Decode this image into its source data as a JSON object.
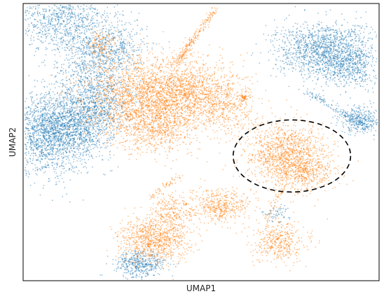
{
  "chart_data": {
    "type": "scatter",
    "title": "",
    "xlabel": "UMAP1",
    "ylabel": "UMAP2",
    "ticks": "none",
    "grid": false,
    "legend": "none",
    "series": [
      {
        "color": "#1f77b4",
        "clusters": [
          {
            "cx": 0.11,
            "cy": 0.95,
            "sx": 0.07,
            "sy": 0.07,
            "n": 1100
          },
          {
            "cx": 0.25,
            "cy": 0.84,
            "sx": 0.05,
            "sy": 0.05,
            "n": 500
          },
          {
            "cx": 0.19,
            "cy": 0.74,
            "sx": 0.05,
            "sy": 0.08,
            "n": 650
          },
          {
            "cx": 0.07,
            "cy": 0.53,
            "sx": 0.06,
            "sy": 0.07,
            "n": 1700
          },
          {
            "cx": 0.15,
            "cy": 0.56,
            "sx": 0.05,
            "sy": 0.06,
            "n": 900
          },
          {
            "cx": 0.22,
            "cy": 0.63,
            "sx": 0.04,
            "sy": 0.05,
            "n": 400
          },
          {
            "cx": 0.85,
            "cy": 0.83,
            "sx": 0.07,
            "sy": 0.05,
            "n": 1500
          },
          {
            "cx": 0.92,
            "cy": 0.77,
            "sx": 0.04,
            "sy": 0.04,
            "n": 400
          },
          {
            "cx": 0.95,
            "cy": 0.58,
            "sx": 0.03,
            "sy": 0.025,
            "n": 350
          },
          {
            "cx": 0.33,
            "cy": 0.06,
            "sx": 0.035,
            "sy": 0.025,
            "n": 450
          },
          {
            "cx": 0.71,
            "cy": 0.24,
            "sx": 0.02,
            "sy": 0.015,
            "n": 60
          }
        ]
      },
      {
        "color": "#ff7f0e",
        "clusters": [
          {
            "cx": 0.33,
            "cy": 0.67,
            "sx": 0.08,
            "sy": 0.07,
            "n": 1500
          },
          {
            "cx": 0.46,
            "cy": 0.68,
            "sx": 0.07,
            "sy": 0.06,
            "n": 1300
          },
          {
            "cx": 0.57,
            "cy": 0.63,
            "sx": 0.04,
            "sy": 0.05,
            "n": 400
          },
          {
            "cx": 0.37,
            "cy": 0.56,
            "sx": 0.06,
            "sy": 0.05,
            "n": 800
          },
          {
            "cx": 0.22,
            "cy": 0.85,
            "sx": 0.02,
            "sy": 0.03,
            "n": 140
          },
          {
            "cx": 0.74,
            "cy": 0.45,
            "sx": 0.06,
            "sy": 0.06,
            "n": 1300
          },
          {
            "cx": 0.8,
            "cy": 0.39,
            "sx": 0.04,
            "sy": 0.03,
            "n": 300
          },
          {
            "cx": 0.42,
            "cy": 0.25,
            "sx": 0.03,
            "sy": 0.03,
            "n": 250
          },
          {
            "cx": 0.55,
            "cy": 0.27,
            "sx": 0.04,
            "sy": 0.03,
            "n": 450
          },
          {
            "cx": 0.37,
            "cy": 0.15,
            "sx": 0.05,
            "sy": 0.04,
            "n": 900
          },
          {
            "cx": 0.72,
            "cy": 0.14,
            "sx": 0.04,
            "sy": 0.035,
            "n": 420
          },
          {
            "cx": 0.62,
            "cy": 0.66,
            "sx": 0.004,
            "sy": 0.006,
            "n": 40
          }
        ]
      }
    ],
    "streaks": [
      {
        "color": "#ff7f0e",
        "from": [
          0.44,
          0.8
        ],
        "to": [
          0.54,
          0.98
        ],
        "n": 150
      },
      {
        "color": "#ff7f0e",
        "from": [
          0.43,
          0.78
        ],
        "to": [
          0.48,
          0.88
        ],
        "n": 80
      },
      {
        "color": "#1f77b4",
        "from": [
          0.8,
          0.68
        ],
        "to": [
          0.97,
          0.55
        ],
        "n": 140
      },
      {
        "color": "#ff7f0e",
        "from": [
          0.36,
          0.3
        ],
        "to": [
          0.44,
          0.38
        ],
        "n": 60
      },
      {
        "color": "#ff7f0e",
        "from": [
          0.68,
          0.22
        ],
        "to": [
          0.73,
          0.34
        ],
        "n": 50
      }
    ],
    "annotation": {
      "type": "dashed-ellipse",
      "color": "#000000",
      "cx": 0.755,
      "cy": 0.45,
      "rx": 0.165,
      "ry": 0.13
    }
  }
}
